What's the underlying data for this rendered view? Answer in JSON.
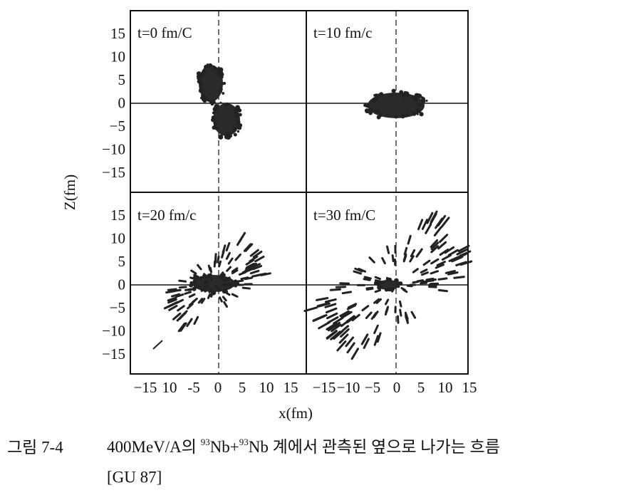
{
  "figure": {
    "panels": [
      {
        "label": "t=0  fm/C"
      },
      {
        "label": "t=10  fm/c"
      },
      {
        "label": "t=20  fm/c"
      },
      {
        "label": "t=30 fm/C"
      }
    ],
    "y_ticks": [
      "15",
      "10",
      "5",
      "0",
      "−5",
      "−10",
      "−15"
    ],
    "x_ticks_left": [
      "−15",
      "10",
      "-5",
      "0",
      "5",
      "10",
      "15"
    ],
    "x_ticks_right": [
      "−15",
      "−10",
      "−5",
      "0",
      "5",
      "10",
      "15"
    ],
    "y_label": "Z(fm)",
    "x_label": "x(fm)"
  },
  "caption": {
    "label": "그림 7-4",
    "text_1": "400MeV/A의 ",
    "sup_1": "93",
    "text_2": "Nb+",
    "sup_2": "93",
    "text_3": "Nb 계에서 관측된 옆으로 나가는 흐름",
    "reference": "[GU 87]"
  }
}
